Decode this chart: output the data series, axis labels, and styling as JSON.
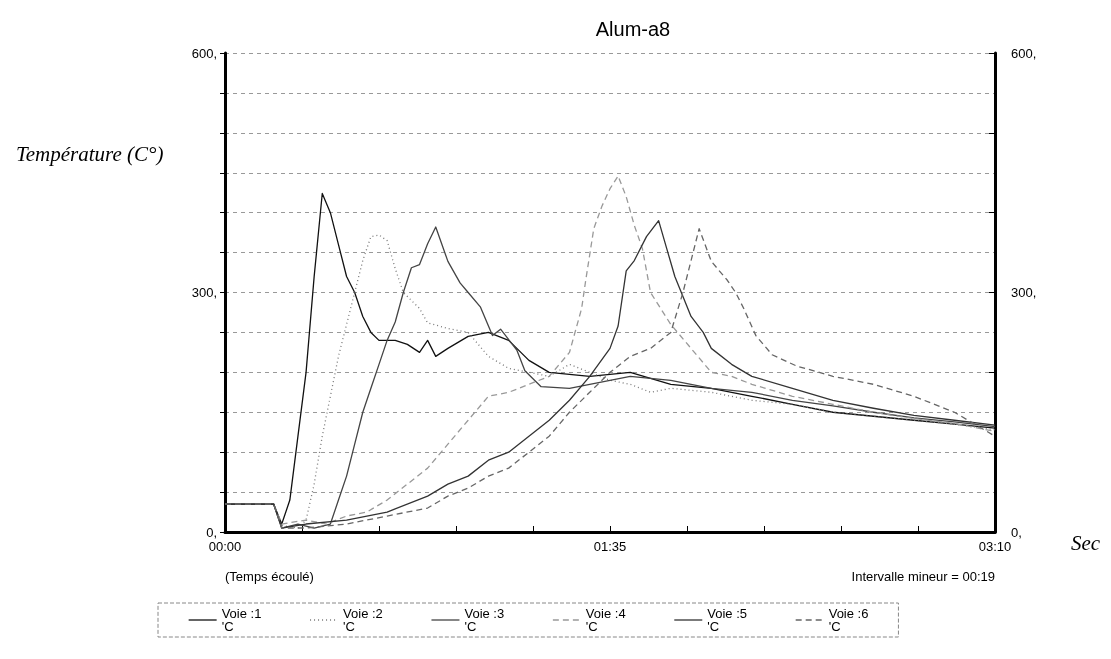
{
  "chart_data": {
    "type": "line",
    "title": "Alum-a8",
    "ylabel": "Température (C°)",
    "xlabel": "(Temps écoulé)",
    "legend_title": "'C",
    "annotations": [
      "Intervalle mineur = 00:19",
      "Sec"
    ],
    "xlim": [
      0,
      190
    ],
    "xticks": [
      {
        "value": 0,
        "label": "00:00"
      },
      {
        "value": 19,
        "label": null
      },
      {
        "value": 38,
        "label": null
      },
      {
        "value": 57,
        "label": null
      },
      {
        "value": 76,
        "label": null
      },
      {
        "value": 95,
        "label": "01:35"
      },
      {
        "value": 114,
        "label": null
      },
      {
        "value": 133,
        "label": null
      },
      {
        "value": 152,
        "label": null
      },
      {
        "value": 171,
        "label": null
      },
      {
        "value": 190,
        "label": "03:10"
      }
    ],
    "ylim": [
      0,
      600
    ],
    "yticks": [
      {
        "value": 0,
        "label": "0,"
      },
      {
        "value": 50,
        "label": null
      },
      {
        "value": 100,
        "label": null
      },
      {
        "value": 150,
        "label": null
      },
      {
        "value": 200,
        "label": null
      },
      {
        "value": 250,
        "label": null
      },
      {
        "value": 300,
        "label": "300,"
      },
      {
        "value": 350,
        "label": null
      },
      {
        "value": 400,
        "label": null
      },
      {
        "value": 450,
        "label": null
      },
      {
        "value": 500,
        "label": null
      },
      {
        "value": 550,
        "label": null
      },
      {
        "value": 600,
        "label": "600,"
      }
    ],
    "y2lim": [
      0,
      600
    ],
    "y2ticks": [
      {
        "value": 0,
        "label": "0,"
      },
      {
        "value": 100,
        "label": null
      },
      {
        "value": 200,
        "label": null
      },
      {
        "value": 300,
        "label": "300,"
      },
      {
        "value": 400,
        "label": null
      },
      {
        "value": 500,
        "label": null
      },
      {
        "value": 600,
        "label": "600,"
      }
    ],
    "grid": "y",
    "legend": "bottom",
    "marker": "none",
    "series": [
      {
        "name": "Voie :1",
        "color": "#111111",
        "line_style": "solid",
        "x": [
          0,
          12,
          14,
          16,
          18,
          20,
          22,
          24,
          26,
          28,
          30,
          32,
          34,
          36,
          38,
          42,
          45,
          48,
          50,
          52,
          55,
          60,
          65,
          70,
          75,
          80,
          90,
          100,
          110,
          120,
          130,
          140,
          150,
          160,
          170,
          180,
          190
        ],
        "values": [
          35,
          35,
          10,
          40,
          120,
          200,
          320,
          424,
          400,
          360,
          320,
          300,
          270,
          250,
          240,
          240,
          235,
          225,
          240,
          220,
          230,
          245,
          250,
          240,
          215,
          200,
          195,
          200,
          185,
          180,
          170,
          160,
          150,
          145,
          140,
          135,
          130
        ]
      },
      {
        "name": "Voie :2",
        "color": "#777777",
        "line_style": "dotted",
        "x": [
          0,
          12,
          14,
          18,
          20,
          22,
          24,
          26,
          28,
          30,
          32,
          34,
          36,
          38,
          40,
          42,
          44,
          46,
          48,
          50,
          55,
          60,
          65,
          70,
          75,
          80,
          85,
          90,
          95,
          100,
          105,
          110,
          120,
          130,
          140,
          150,
          160,
          170,
          180,
          190
        ],
        "values": [
          35,
          35,
          8,
          5,
          15,
          60,
          120,
          170,
          220,
          260,
          300,
          340,
          370,
          372,
          365,
          330,
          300,
          290,
          280,
          262,
          255,
          250,
          220,
          205,
          200,
          195,
          210,
          200,
          190,
          185,
          175,
          180,
          175,
          165,
          160,
          150,
          145,
          140,
          135,
          128
        ]
      },
      {
        "name": "Voie :3",
        "color": "#444444",
        "line_style": "solid",
        "x": [
          0,
          12,
          14,
          18,
          22,
          26,
          28,
          30,
          32,
          34,
          36,
          38,
          40,
          42,
          44,
          46,
          48,
          50,
          52,
          55,
          58,
          60,
          63,
          66,
          68,
          72,
          74,
          78,
          85,
          90,
          100,
          110,
          120,
          130,
          140,
          150,
          160,
          170,
          180,
          190
        ],
        "values": [
          35,
          35,
          5,
          10,
          5,
          10,
          40,
          70,
          110,
          150,
          180,
          210,
          240,
          263,
          300,
          331,
          335,
          361,
          382,
          339,
          312,
          300,
          282,
          246,
          254,
          228,
          202,
          182,
          180,
          185,
          195,
          190,
          180,
          175,
          165,
          158,
          150,
          143,
          138,
          132
        ]
      },
      {
        "name": "Voie :4",
        "color": "#999999",
        "line_style": "dashed",
        "x": [
          0,
          12,
          14,
          20,
          25,
          30,
          35,
          40,
          45,
          50,
          55,
          60,
          65,
          70,
          75,
          80,
          85,
          88,
          89,
          91,
          93,
          95,
          97,
          99,
          101,
          103,
          105,
          110,
          115,
          120,
          125,
          130,
          140,
          150,
          160,
          170,
          180,
          190
        ],
        "values": [
          35,
          35,
          10,
          15,
          10,
          20,
          25,
          40,
          60,
          80,
          110,
          140,
          170,
          175,
          185,
          195,
          225,
          280,
          315,
          380,
          408,
          430,
          446,
          420,
          384,
          355,
          300,
          260,
          230,
          200,
          195,
          185,
          170,
          160,
          150,
          142,
          136,
          126
        ]
      },
      {
        "name": "Voie :5",
        "color": "#333333",
        "line_style": "solid",
        "x": [
          0,
          12,
          14,
          20,
          30,
          40,
          50,
          55,
          60,
          65,
          70,
          75,
          80,
          85,
          90,
          95,
          97,
          99,
          101,
          104,
          107,
          109,
          111,
          113,
          115,
          118,
          120,
          125,
          130,
          140,
          150,
          160,
          170,
          180,
          190
        ],
        "values": [
          35,
          35,
          5,
          10,
          15,
          25,
          45,
          60,
          70,
          90,
          100,
          120,
          140,
          165,
          195,
          230,
          258,
          327,
          340,
          370,
          390,
          355,
          320,
          295,
          270,
          250,
          230,
          210,
          195,
          180,
          165,
          155,
          146,
          140,
          134
        ]
      },
      {
        "name": "Voie :6",
        "color": "#666666",
        "line_style": "dashed",
        "x": [
          0,
          12,
          14,
          20,
          30,
          40,
          50,
          55,
          60,
          65,
          70,
          75,
          80,
          85,
          90,
          95,
          100,
          105,
          110,
          113,
          115,
          117,
          120,
          124,
          126,
          128,
          131,
          135,
          141,
          150,
          160,
          170,
          180,
          190
        ],
        "values": [
          35,
          35,
          5,
          5,
          10,
          20,
          30,
          45,
          55,
          70,
          80,
          100,
          120,
          150,
          175,
          200,
          220,
          230,
          250,
          300,
          340,
          380,
          339,
          315,
          300,
          280,
          246,
          222,
          208,
          195,
          185,
          170,
          150,
          120
        ]
      }
    ]
  }
}
